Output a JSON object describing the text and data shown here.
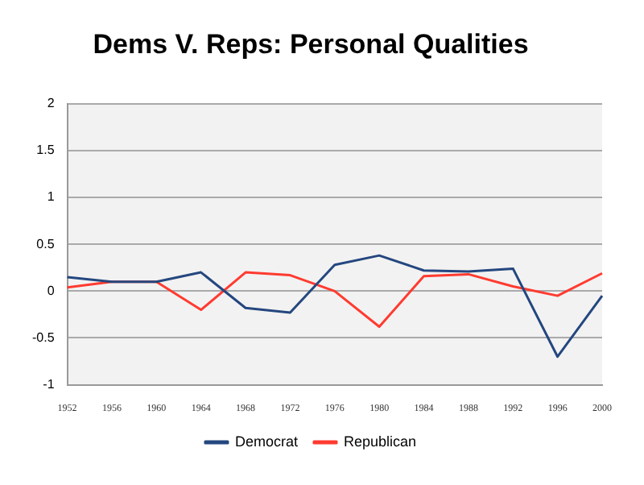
{
  "chart_data": {
    "type": "line",
    "title": "Dems V. Reps: Personal Qualities",
    "categories": [
      "1952",
      "1956",
      "1960",
      "1964",
      "1968",
      "1972",
      "1976",
      "1980",
      "1984",
      "1988",
      "1992",
      "1996",
      "2000"
    ],
    "series": [
      {
        "name": "Democrat",
        "color": "#24477f",
        "values": [
          0.15,
          0.1,
          0.1,
          0.2,
          -0.18,
          -0.23,
          0.28,
          0.38,
          0.22,
          0.21,
          0.24,
          -0.7,
          -0.05
        ]
      },
      {
        "name": "Republican",
        "color": "#ff3b30",
        "values": [
          0.04,
          0.1,
          0.1,
          -0.2,
          0.2,
          0.17,
          0.0,
          -0.38,
          0.16,
          0.18,
          0.05,
          -0.05,
          0.19
        ]
      }
    ],
    "ylim": [
      -1,
      2
    ],
    "yticks": [
      -1,
      -0.5,
      0,
      0.5,
      1,
      1.5,
      2
    ],
    "grid": "y",
    "legend": "bottom",
    "marker": "none",
    "line_style": "solid"
  }
}
